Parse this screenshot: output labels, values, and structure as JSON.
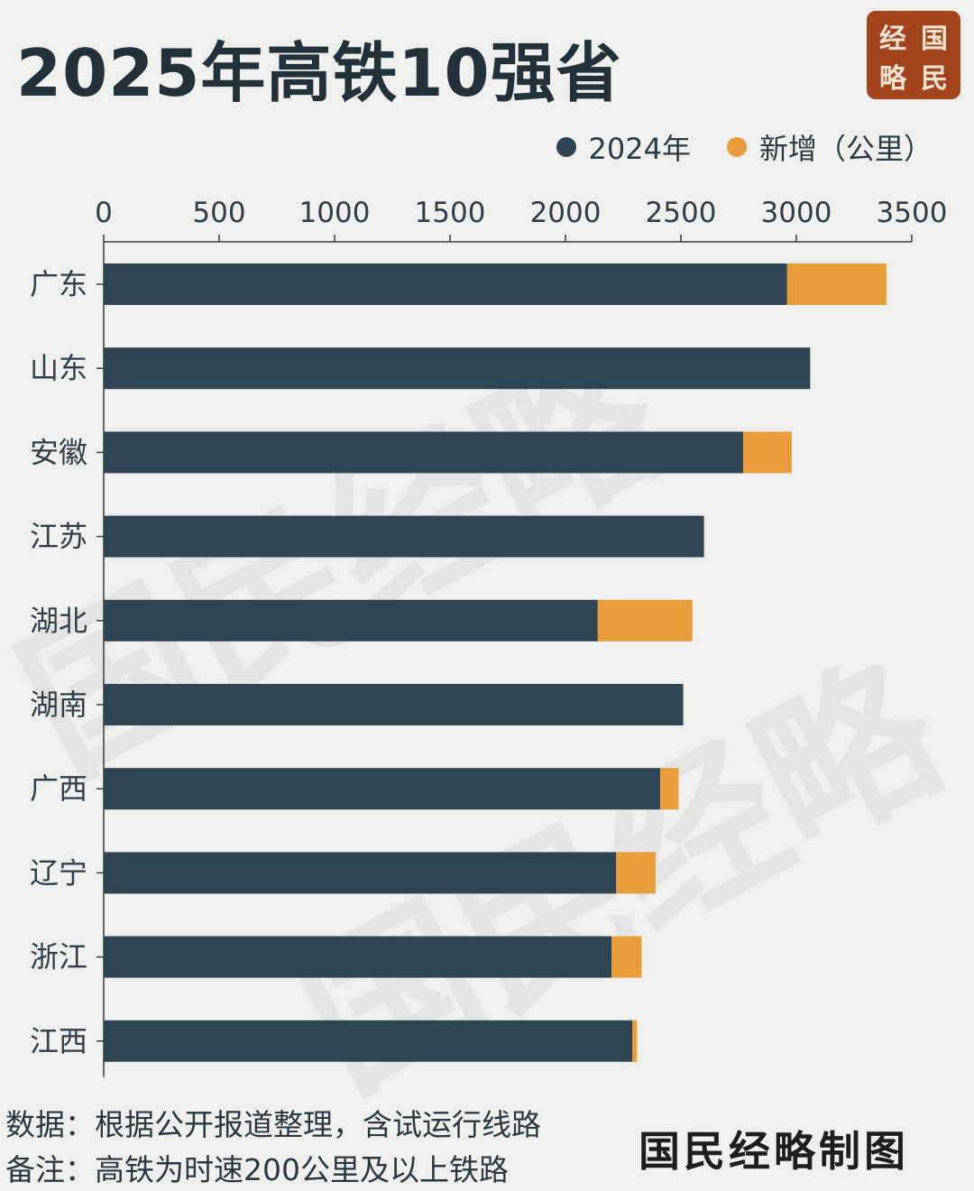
{
  "title": "2025年高铁10强省",
  "seal": [
    "经",
    "国",
    "略",
    "民"
  ],
  "legend": [
    {
      "label": "2024年",
      "color": "#2f4554"
    },
    {
      "label": "新增（公里）",
      "color": "#e89c3a"
    }
  ],
  "chart_data": {
    "type": "bar",
    "orientation": "horizontal",
    "stacked": true,
    "categories": [
      "广东",
      "山东",
      "安徽",
      "江苏",
      "湖北",
      "湖南",
      "广西",
      "辽宁",
      "浙江",
      "江西"
    ],
    "series": [
      {
        "name": "2024年",
        "color": "#2f4554",
        "values": [
          2960,
          3060,
          2770,
          2600,
          2140,
          2510,
          2410,
          2220,
          2200,
          2290
        ]
      },
      {
        "name": "新增（公里）",
        "color": "#e89c3a",
        "values": [
          430,
          0,
          210,
          0,
          410,
          0,
          80,
          170,
          130,
          20
        ]
      }
    ],
    "xlim": [
      0,
      3500
    ],
    "xticks": [
      0,
      500,
      1000,
      1500,
      2000,
      2500,
      3000,
      3500
    ],
    "xaxis_position": "top",
    "grid": false,
    "legend_position": "top-right"
  },
  "notes": {
    "source": "数据：根据公开报道整理，含试运行线路",
    "remark": "备注：高铁为时速200公里及以上铁路"
  },
  "signature": "国民经略制图",
  "watermark": "国民经略"
}
